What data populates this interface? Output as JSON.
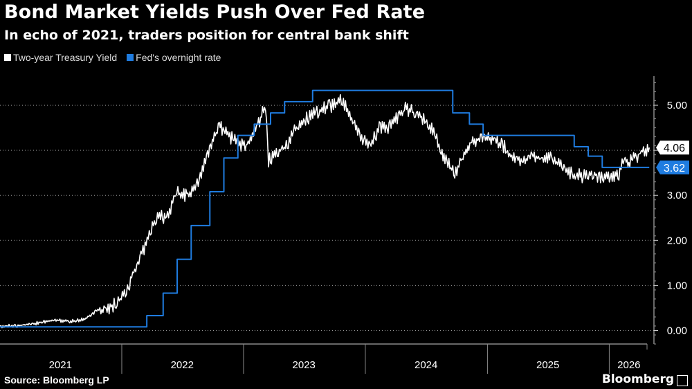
{
  "header": {
    "title": "Bond Market Yields Push Over Fed Rate",
    "subtitle": "In echo of 2021, traders position for central bank shift"
  },
  "footer": {
    "source": "Source: Bloomberg LP",
    "brand": "Bloomberg"
  },
  "colors": {
    "background": "#000000",
    "treasury": "#ffffff",
    "fed": "#1f7ce0"
  },
  "chart_data": {
    "type": "line",
    "title": "Bond Market Yields Push Over Fed Rate",
    "subtitle": "In echo of 2021, traders position for central bank shift",
    "xlim": [
      "2021-01-01",
      "2026-05-15"
    ],
    "ylim": [
      -0.3,
      5.8
    ],
    "y_ticks": [
      0.0,
      1.0,
      2.0,
      3.0,
      4.0,
      5.0
    ],
    "y_tick_labels": [
      "0.00",
      "1.00",
      "2.00",
      "3.00",
      "4.00",
      "5.00"
    ],
    "x_tick_labels": [
      "2021",
      "2022",
      "2023",
      "2024",
      "2025",
      "2026"
    ],
    "x_tick_dates": [
      "2021-07-01",
      "2022-07-01",
      "2023-07-01",
      "2024-07-01",
      "2025-07-01",
      "2026-03-01"
    ],
    "x_dividers": [
      "2022-01-01",
      "2023-01-01",
      "2024-01-01",
      "2025-01-01",
      "2026-01-01"
    ],
    "legend_position": "top-left",
    "grid": "horizontal dotted",
    "series": [
      {
        "name": "Two-year Treasury Yield",
        "color": "#ffffff",
        "kind": "line",
        "last_label": "4.06",
        "points": [
          [
            "2021-01-01",
            0.12
          ],
          [
            "2021-02-15",
            0.12
          ],
          [
            "2021-04-01",
            0.16
          ],
          [
            "2021-06-15",
            0.25
          ],
          [
            "2021-08-01",
            0.22
          ],
          [
            "2021-09-15",
            0.28
          ],
          [
            "2021-10-15",
            0.45
          ],
          [
            "2021-11-15",
            0.55
          ],
          [
            "2021-12-15",
            0.68
          ],
          [
            "2022-01-15",
            0.95
          ],
          [
            "2022-02-15",
            1.55
          ],
          [
            "2022-03-15",
            2.0
          ],
          [
            "2022-04-15",
            2.6
          ],
          [
            "2022-05-15",
            2.6
          ],
          [
            "2022-06-15",
            3.15
          ],
          [
            "2022-07-15",
            3.05
          ],
          [
            "2022-08-15",
            3.3
          ],
          [
            "2022-09-15",
            4.0
          ],
          [
            "2022-10-20",
            4.6
          ],
          [
            "2022-11-15",
            4.45
          ],
          [
            "2022-12-15",
            4.2
          ],
          [
            "2023-01-15",
            4.2
          ],
          [
            "2023-02-15",
            4.7
          ],
          [
            "2023-03-08",
            5.05
          ],
          [
            "2023-03-17",
            3.85
          ],
          [
            "2023-04-15",
            4.05
          ],
          [
            "2023-05-15",
            4.2
          ],
          [
            "2023-06-15",
            4.7
          ],
          [
            "2023-07-15",
            4.8
          ],
          [
            "2023-08-15",
            4.95
          ],
          [
            "2023-09-15",
            5.05
          ],
          [
            "2023-10-18",
            5.2
          ],
          [
            "2023-11-15",
            4.9
          ],
          [
            "2023-12-15",
            4.4
          ],
          [
            "2024-01-15",
            4.2
          ],
          [
            "2024-02-15",
            4.6
          ],
          [
            "2024-03-15",
            4.6
          ],
          [
            "2024-04-30",
            5.0
          ],
          [
            "2024-05-30",
            4.9
          ],
          [
            "2024-06-30",
            4.75
          ],
          [
            "2024-07-30",
            4.4
          ],
          [
            "2024-08-15",
            4.0
          ],
          [
            "2024-09-25",
            3.55
          ],
          [
            "2024-10-20",
            4.0
          ],
          [
            "2024-11-15",
            4.3
          ],
          [
            "2024-12-20",
            4.3
          ],
          [
            "2025-01-15",
            4.35
          ],
          [
            "2025-02-15",
            4.2
          ],
          [
            "2025-03-15",
            3.95
          ],
          [
            "2025-04-15",
            3.8
          ],
          [
            "2025-05-15",
            3.95
          ],
          [
            "2025-06-15",
            3.9
          ],
          [
            "2025-07-15",
            3.9
          ],
          [
            "2025-08-15",
            3.7
          ],
          [
            "2025-09-15",
            3.55
          ],
          [
            "2025-10-15",
            3.5
          ],
          [
            "2025-11-15",
            3.55
          ],
          [
            "2025-12-15",
            3.5
          ],
          [
            "2026-01-10",
            3.5
          ],
          [
            "2026-01-30",
            3.55
          ],
          [
            "2026-02-15",
            3.85
          ],
          [
            "2026-03-01",
            3.8
          ],
          [
            "2026-03-15",
            3.9
          ],
          [
            "2026-04-01",
            4.0
          ],
          [
            "2026-04-20",
            4.1
          ],
          [
            "2026-05-01",
            4.06
          ]
        ]
      },
      {
        "name": "Fed's overnight rate",
        "color": "#1f7ce0",
        "kind": "step",
        "last_label": "3.62",
        "points": [
          [
            "2021-01-01",
            0.08
          ],
          [
            "2022-03-17",
            0.33
          ],
          [
            "2022-05-05",
            0.83
          ],
          [
            "2022-06-16",
            1.58
          ],
          [
            "2022-07-28",
            2.33
          ],
          [
            "2022-09-22",
            3.08
          ],
          [
            "2022-11-03",
            3.83
          ],
          [
            "2022-12-15",
            4.33
          ],
          [
            "2023-02-02",
            4.58
          ],
          [
            "2023-03-23",
            4.83
          ],
          [
            "2023-05-04",
            5.08
          ],
          [
            "2023-07-27",
            5.33
          ],
          [
            "2024-09-19",
            4.83
          ],
          [
            "2024-11-08",
            4.58
          ],
          [
            "2024-12-19",
            4.33
          ],
          [
            "2025-09-18",
            4.08
          ],
          [
            "2025-10-30",
            3.87
          ],
          [
            "2025-12-11",
            3.62
          ],
          [
            "2026-05-01",
            3.62
          ]
        ]
      }
    ]
  }
}
